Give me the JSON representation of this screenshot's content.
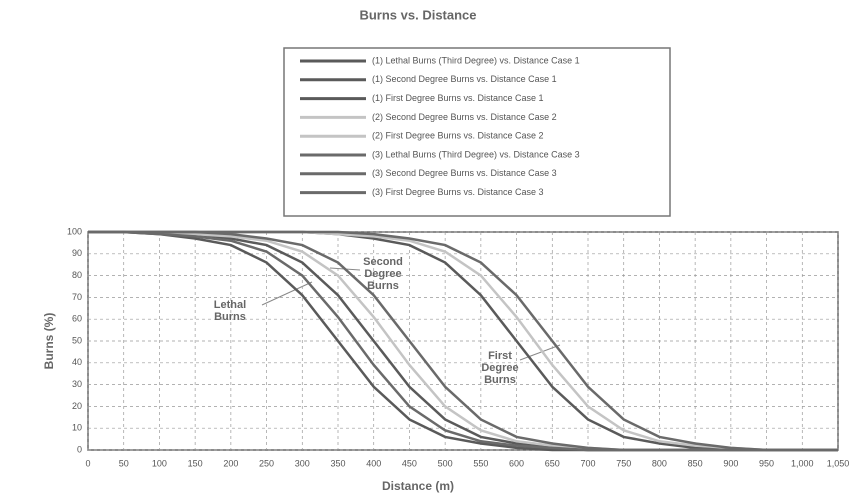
{
  "chart_data": {
    "type": "line",
    "title": "Burns vs. Distance",
    "xlabel": "Distance (m)",
    "ylabel": "Burns (%)",
    "x": [
      0,
      50,
      100,
      150,
      200,
      250,
      300,
      350,
      400,
      450,
      500,
      550,
      600,
      650,
      700,
      750,
      800,
      850,
      900,
      950,
      1000,
      1050
    ],
    "xlim": [
      0,
      1050
    ],
    "xticks": [
      0,
      50,
      100,
      150,
      200,
      250,
      300,
      350,
      400,
      450,
      500,
      550,
      600,
      650,
      700,
      750,
      800,
      850,
      900,
      950,
      {
        "value": 1000,
        "label": "1,000"
      },
      {
        "value": 1050,
        "label": "1,050"
      }
    ],
    "ylim": [
      0,
      100
    ],
    "yticks": [
      0,
      10,
      20,
      30,
      40,
      50,
      60,
      70,
      80,
      90,
      100
    ],
    "grid": true,
    "series": [
      {
        "name": "(1) Lethal Burns (Third Degree) vs. Distance Case 1",
        "color": "#5a5a5a",
        "values": [
          100,
          100,
          99,
          97,
          94,
          86,
          71,
          50,
          29,
          14,
          6,
          3,
          1,
          0,
          0,
          0,
          0,
          0,
          0,
          0,
          0,
          0
        ]
      },
      {
        "name": "(1) Second Degree Burns vs. Distance Case 1",
        "color": "#5a5a5a",
        "values": [
          100,
          100,
          100,
          99,
          97,
          94,
          86,
          71,
          50,
          29,
          14,
          6,
          3,
          1,
          0,
          0,
          0,
          0,
          0,
          0,
          0,
          0
        ]
      },
      {
        "name": "(1) First Degree Burns vs. Distance Case 1",
        "color": "#5a5a5a",
        "values": [
          100,
          100,
          100,
          100,
          100,
          100,
          100,
          99,
          97,
          94,
          86,
          71,
          50,
          29,
          14,
          6,
          3,
          1,
          0,
          0,
          0,
          0
        ]
      },
      {
        "name": "(2) Second Degree Burns vs. Distance Case 2",
        "color": "#c4c4c4",
        "values": [
          100,
          100,
          100,
          99,
          98,
          96,
          91,
          80,
          61,
          39,
          20,
          9,
          4,
          2,
          1,
          0,
          0,
          0,
          0,
          0,
          0,
          0
        ]
      },
      {
        "name": "(2) First Degree Burns vs. Distance Case 2",
        "color": "#c4c4c4",
        "values": [
          100,
          100,
          100,
          100,
          100,
          100,
          100,
          99,
          98,
          96,
          91,
          80,
          61,
          39,
          20,
          9,
          4,
          2,
          1,
          0,
          0,
          0
        ]
      },
      {
        "name": "(3) Lethal Burns (Third Degree) vs. Distance Case 3",
        "color": "#6a6a6a",
        "values": [
          100,
          100,
          99,
          98,
          96,
          91,
          80,
          61,
          39,
          20,
          9,
          4,
          2,
          1,
          0,
          0,
          0,
          0,
          0,
          0,
          0,
          0
        ]
      },
      {
        "name": "(3) Second Degree Burns vs. Distance Case 3",
        "color": "#6a6a6a",
        "values": [
          100,
          100,
          100,
          100,
          99,
          97,
          94,
          86,
          71,
          50,
          29,
          14,
          6,
          3,
          1,
          0,
          0,
          0,
          0,
          0,
          0,
          0
        ]
      },
      {
        "name": "(3) First Degree Burns vs. Distance Case 3",
        "color": "#6a6a6a",
        "values": [
          100,
          100,
          100,
          100,
          100,
          100,
          100,
          100,
          99,
          97,
          94,
          86,
          71,
          50,
          29,
          14,
          6,
          3,
          1,
          0,
          0,
          0
        ]
      }
    ],
    "annotations": [
      {
        "lines": [
          "Lethal",
          "Burns"
        ]
      },
      {
        "lines": [
          "Second",
          "Degree",
          "Burns"
        ]
      },
      {
        "lines": [
          "First",
          "Degree",
          "Burns"
        ]
      }
    ]
  }
}
